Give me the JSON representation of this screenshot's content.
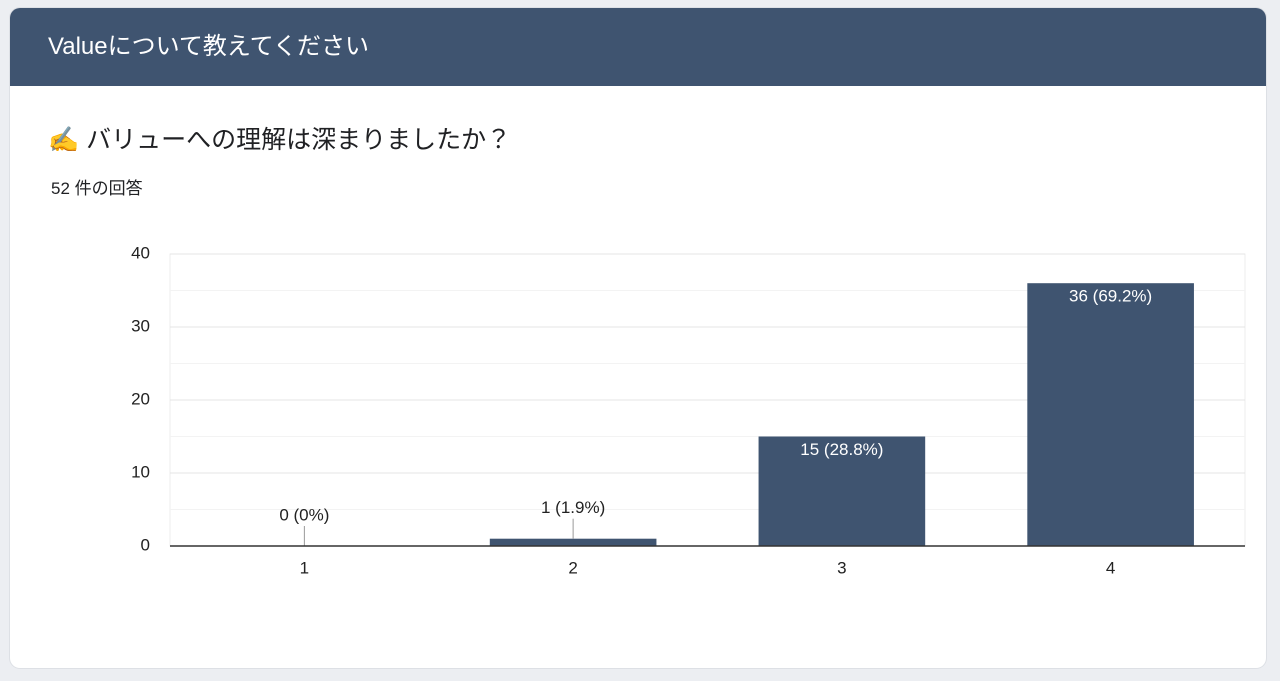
{
  "header": {
    "title": "Valueについて教えてください"
  },
  "question": "✍️ バリューへの理解は深まりましたか？",
  "response_count": "52 件の回答",
  "chart_data": {
    "type": "bar",
    "categories": [
      "1",
      "2",
      "3",
      "4"
    ],
    "values": [
      0,
      1,
      15,
      36
    ],
    "value_labels": [
      "0 (0%)",
      "1 (1.9%)",
      "15 (28.8%)",
      "36 (69.2%)"
    ],
    "color": "#3f5470",
    "ylim": [
      0,
      40
    ],
    "yticks": [
      0,
      10,
      20,
      30,
      40
    ],
    "grid": true,
    "minor_grid": true
  }
}
